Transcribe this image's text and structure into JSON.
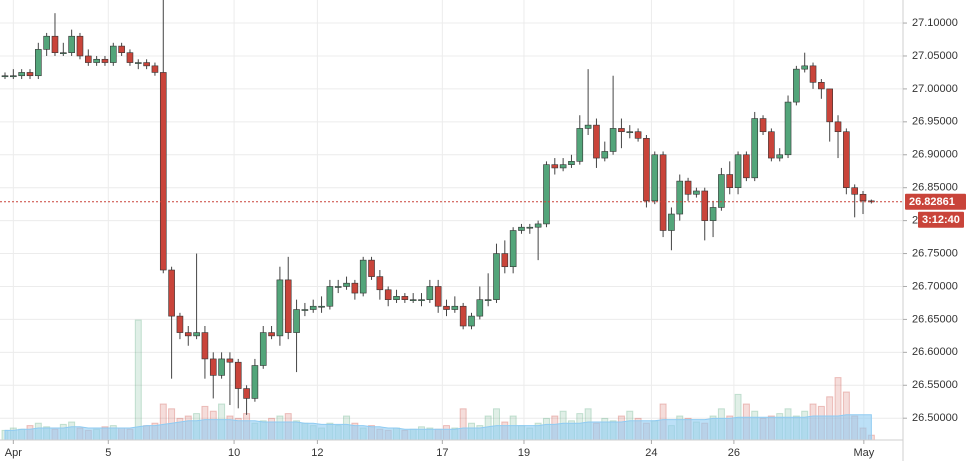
{
  "chart_data": {
    "type": "candlestick",
    "xlim": [
      -0.6,
      107.8
    ],
    "xticks": [
      {
        "value": 1,
        "label": "Apr"
      },
      {
        "value": 12.4,
        "label": "5"
      },
      {
        "value": 27.5,
        "label": "10"
      },
      {
        "value": 37.5,
        "label": "12"
      },
      {
        "value": 52.5,
        "label": "17"
      },
      {
        "value": 62.3,
        "label": "19"
      },
      {
        "value": 77.6,
        "label": "24"
      },
      {
        "value": 87.5,
        "label": "26"
      },
      {
        "value": 103.1,
        "label": "May"
      }
    ],
    "ylim": [
      26.435,
      27.135
    ],
    "yticks": [
      {
        "value": 26.5,
        "label": "26.50000"
      },
      {
        "value": 26.55,
        "label": "26.55000"
      },
      {
        "value": 26.6,
        "label": "26.60000"
      },
      {
        "value": 26.65,
        "label": "26.65000"
      },
      {
        "value": 26.7,
        "label": "26.70000"
      },
      {
        "value": 26.75,
        "label": "26.75000"
      },
      {
        "value": 26.8,
        "label": "26.80000"
      },
      {
        "value": 26.85,
        "label": "26.85000"
      },
      {
        "value": 26.9,
        "label": "26.90000"
      },
      {
        "value": 26.95,
        "label": "26.95000"
      },
      {
        "value": 27.0,
        "label": "27.00000"
      },
      {
        "value": 27.05,
        "label": "27.05000"
      },
      {
        "value": 27.1,
        "label": "27.10000"
      }
    ],
    "grid": true,
    "up_color": "#53a57a",
    "down_color": "#c9443a",
    "open": [
      27.02,
      27.02,
      27.02,
      27.025,
      27.02,
      27.06,
      27.08,
      27.055,
      27.055,
      27.08,
      27.05,
      27.04,
      27.045,
      27.04,
      27.065,
      27.055,
      27.04,
      27.04,
      27.035,
      27.025,
      26.725,
      26.655,
      26.63,
      26.625,
      26.63,
      26.59,
      26.565,
      26.59,
      26.585,
      26.545,
      26.53,
      26.58,
      26.63,
      26.625,
      26.71,
      26.63,
      26.665,
      26.665,
      26.67,
      26.67,
      26.7,
      26.7,
      26.705,
      26.69,
      26.74,
      26.715,
      26.695,
      26.68,
      26.685,
      26.68,
      26.68,
      26.68,
      26.7,
      26.67,
      26.665,
      26.67,
      26.64,
      26.655,
      26.68,
      26.68,
      26.75,
      26.73,
      26.785,
      26.79,
      26.79,
      26.795,
      26.885,
      26.88,
      26.885,
      26.89,
      26.94,
      26.945,
      26.895,
      26.905,
      26.94,
      26.935,
      26.935,
      26.925,
      26.83,
      26.9,
      26.785,
      26.81,
      26.86,
      26.84,
      26.845,
      26.8,
      26.82,
      26.87,
      26.85,
      26.9,
      26.865,
      26.955,
      26.935,
      26.895,
      26.9,
      26.98,
      27.03,
      27.035,
      27.01,
      27.0,
      26.95,
      26.935,
      26.85,
      26.84,
      26.83
    ],
    "high": [
      27.025,
      27.03,
      27.03,
      27.03,
      27.07,
      27.085,
      27.115,
      27.07,
      27.09,
      27.085,
      27.06,
      27.05,
      27.05,
      27.07,
      27.07,
      27.06,
      27.045,
      27.045,
      27.04,
      27.14,
      26.73,
      26.66,
      26.64,
      26.75,
      26.64,
      26.6,
      26.6,
      26.6,
      26.59,
      26.55,
      26.59,
      26.64,
      26.64,
      26.73,
      26.745,
      26.68,
      26.675,
      26.68,
      26.685,
      26.71,
      26.71,
      26.715,
      26.71,
      26.745,
      26.745,
      26.725,
      26.7,
      26.695,
      26.69,
      26.69,
      26.69,
      26.71,
      26.71,
      26.68,
      26.685,
      26.675,
      26.66,
      26.7,
      26.72,
      26.765,
      26.77,
      26.79,
      26.795,
      26.795,
      26.8,
      26.89,
      26.895,
      26.895,
      26.9,
      26.96,
      27.03,
      26.955,
      26.92,
      27.02,
      26.955,
      26.945,
      26.94,
      26.93,
      26.905,
      26.905,
      26.82,
      26.87,
      26.865,
      26.85,
      26.85,
      26.83,
      26.88,
      26.89,
      26.905,
      26.905,
      26.965,
      26.96,
      26.94,
      26.91,
      26.99,
      27.035,
      27.055,
      27.04,
      27.015,
      27.0,
      26.96,
      26.94,
      26.855,
      26.845,
      26.832
    ],
    "low": [
      27.015,
      27.015,
      27.015,
      27.015,
      27.015,
      27.05,
      27.05,
      27.05,
      27.05,
      27.045,
      27.035,
      27.035,
      27.035,
      27.035,
      27.05,
      27.035,
      27.03,
      27.03,
      27.02,
      26.72,
      26.56,
      26.62,
      26.61,
      26.62,
      26.56,
      26.53,
      26.56,
      26.52,
      26.515,
      26.505,
      26.525,
      26.575,
      26.62,
      26.61,
      26.62,
      26.57,
      26.655,
      26.66,
      26.66,
      26.665,
      26.69,
      26.695,
      26.68,
      26.685,
      26.71,
      26.68,
      26.67,
      26.675,
      26.675,
      26.675,
      26.67,
      26.675,
      26.66,
      26.655,
      26.66,
      26.635,
      26.635,
      26.65,
      26.67,
      26.675,
      26.72,
      26.72,
      26.78,
      26.78,
      26.74,
      26.79,
      26.87,
      26.875,
      26.88,
      26.885,
      26.93,
      26.88,
      26.89,
      26.9,
      26.91,
      26.925,
      26.92,
      26.82,
      26.825,
      26.775,
      26.755,
      26.8,
      26.83,
      26.835,
      26.77,
      26.775,
      26.815,
      26.84,
      26.84,
      26.86,
      26.86,
      26.93,
      26.89,
      26.89,
      26.895,
      26.975,
      27.025,
      27.0,
      26.985,
      26.92,
      26.895,
      26.84,
      26.805,
      26.81,
      26.826
    ],
    "close": [
      27.02,
      27.02,
      27.025,
      27.02,
      27.06,
      27.08,
      27.055,
      27.055,
      27.08,
      27.05,
      27.04,
      27.045,
      27.04,
      27.065,
      27.055,
      27.04,
      27.04,
      27.035,
      27.025,
      26.725,
      26.655,
      26.63,
      26.625,
      26.63,
      26.59,
      26.565,
      26.59,
      26.585,
      26.545,
      26.53,
      26.58,
      26.63,
      26.625,
      26.71,
      26.63,
      26.665,
      26.665,
      26.67,
      26.67,
      26.7,
      26.7,
      26.705,
      26.69,
      26.74,
      26.715,
      26.695,
      26.68,
      26.685,
      26.68,
      26.68,
      26.68,
      26.7,
      26.67,
      26.665,
      26.67,
      26.64,
      26.655,
      26.68,
      26.68,
      26.75,
      26.73,
      26.785,
      26.79,
      26.79,
      26.795,
      26.885,
      26.88,
      26.885,
      26.89,
      26.94,
      26.945,
      26.895,
      26.905,
      26.94,
      26.935,
      26.935,
      26.925,
      26.83,
      26.9,
      26.785,
      26.81,
      26.86,
      26.84,
      26.845,
      26.8,
      26.82,
      26.87,
      26.85,
      26.9,
      26.865,
      26.955,
      26.935,
      26.895,
      26.9,
      26.98,
      27.03,
      27.035,
      27.01,
      27.0,
      26.95,
      26.935,
      26.85,
      26.84,
      26.83,
      26.829
    ],
    "volume_lim": [
      0,
      100
    ],
    "volume": [
      8,
      10,
      9,
      12,
      14,
      11,
      9,
      13,
      15,
      10,
      8,
      9,
      11,
      12,
      10,
      9,
      100,
      12,
      14,
      30,
      26,
      18,
      20,
      22,
      28,
      24,
      30,
      20,
      18,
      22,
      14,
      16,
      18,
      20,
      22,
      16,
      14,
      12,
      10,
      14,
      12,
      20,
      14,
      10,
      12,
      9,
      8,
      10,
      8,
      9,
      11,
      10,
      9,
      12,
      10,
      26,
      14,
      12,
      20,
      26,
      15,
      20,
      12,
      10,
      14,
      18,
      20,
      24,
      16,
      22,
      26,
      14,
      18,
      16,
      20,
      24,
      18,
      14,
      16,
      30,
      12,
      20,
      18,
      15,
      14,
      20,
      26,
      20,
      38,
      30,
      24,
      18,
      20,
      22,
      26,
      20,
      24,
      30,
      28,
      36,
      52,
      40,
      20,
      10,
      4
    ],
    "volume_average": [
      8,
      8,
      9,
      9,
      10,
      10,
      10,
      10,
      11,
      11,
      10,
      10,
      10,
      10,
      10,
      10,
      11,
      12,
      12,
      13,
      14,
      15,
      16,
      16,
      17,
      17,
      17,
      17,
      16,
      16,
      16,
      15,
      15,
      15,
      15,
      15,
      14,
      14,
      13,
      13,
      13,
      13,
      12,
      12,
      11,
      11,
      10,
      10,
      9,
      9,
      9,
      9,
      9,
      9,
      9,
      10,
      10,
      10,
      11,
      12,
      12,
      12,
      12,
      12,
      12,
      13,
      13,
      14,
      14,
      14,
      15,
      15,
      15,
      15,
      15,
      16,
      16,
      16,
      16,
      17,
      17,
      17,
      17,
      17,
      17,
      18,
      18,
      18,
      19,
      19,
      19,
      19,
      19,
      19,
      19,
      19,
      19,
      20,
      20,
      20,
      20,
      21,
      21,
      21,
      21
    ],
    "volume_color": "#8fcbf2",
    "last_price": 26.82861,
    "countdown": "3:12:40"
  }
}
